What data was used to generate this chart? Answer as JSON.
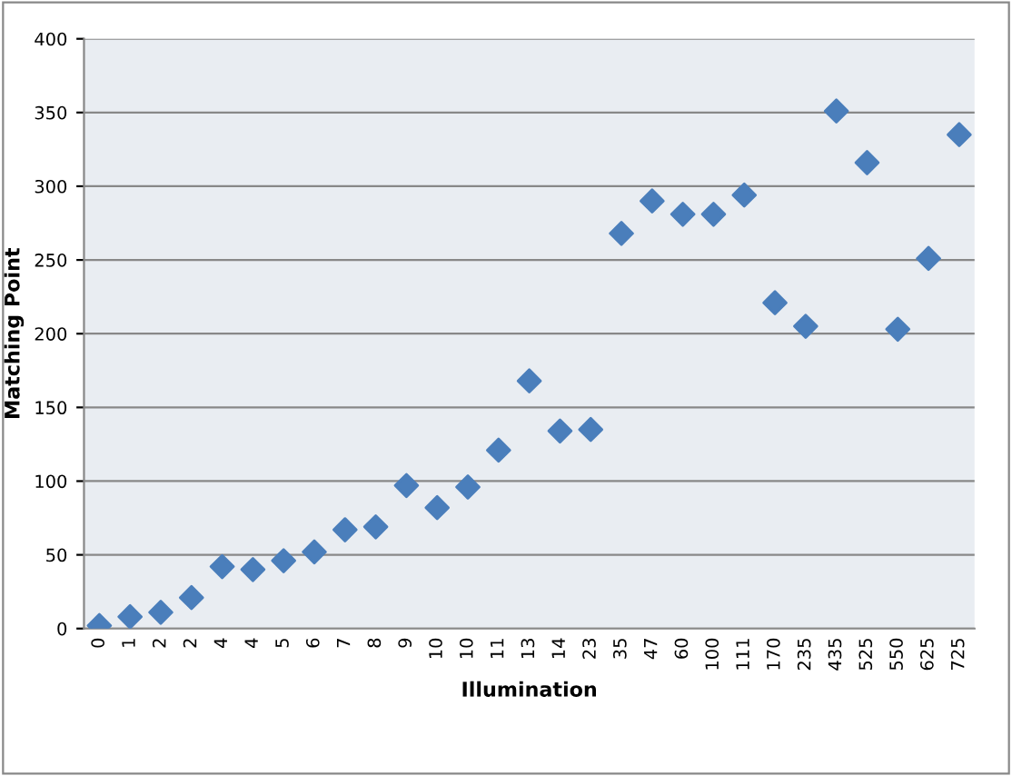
{
  "chart_data": {
    "type": "scatter",
    "xlabel": "Illumination",
    "ylabel": "Matching Point",
    "categories": [
      "0",
      "1",
      "2",
      "2",
      "4",
      "4",
      "5",
      "6",
      "7",
      "8",
      "9",
      "10",
      "10",
      "11",
      "13",
      "14",
      "23",
      "35",
      "47",
      "60",
      "100",
      "111",
      "170",
      "235",
      "435",
      "525",
      "550",
      "625",
      "725"
    ],
    "series": [
      {
        "color": "#4a7ebb",
        "values": [
          2,
          8,
          11,
          21,
          42,
          40,
          46,
          52,
          67,
          69,
          97,
          82,
          96,
          121,
          168,
          134,
          135,
          268,
          290,
          281,
          281,
          294,
          221,
          205,
          351,
          316,
          203,
          251,
          335
        ]
      }
    ],
    "ylim": [
      0,
      400
    ],
    "yticks": [
      0,
      50,
      100,
      150,
      200,
      250,
      300,
      350,
      400
    ],
    "grid": "y",
    "marker": "diamond",
    "legend": false
  }
}
